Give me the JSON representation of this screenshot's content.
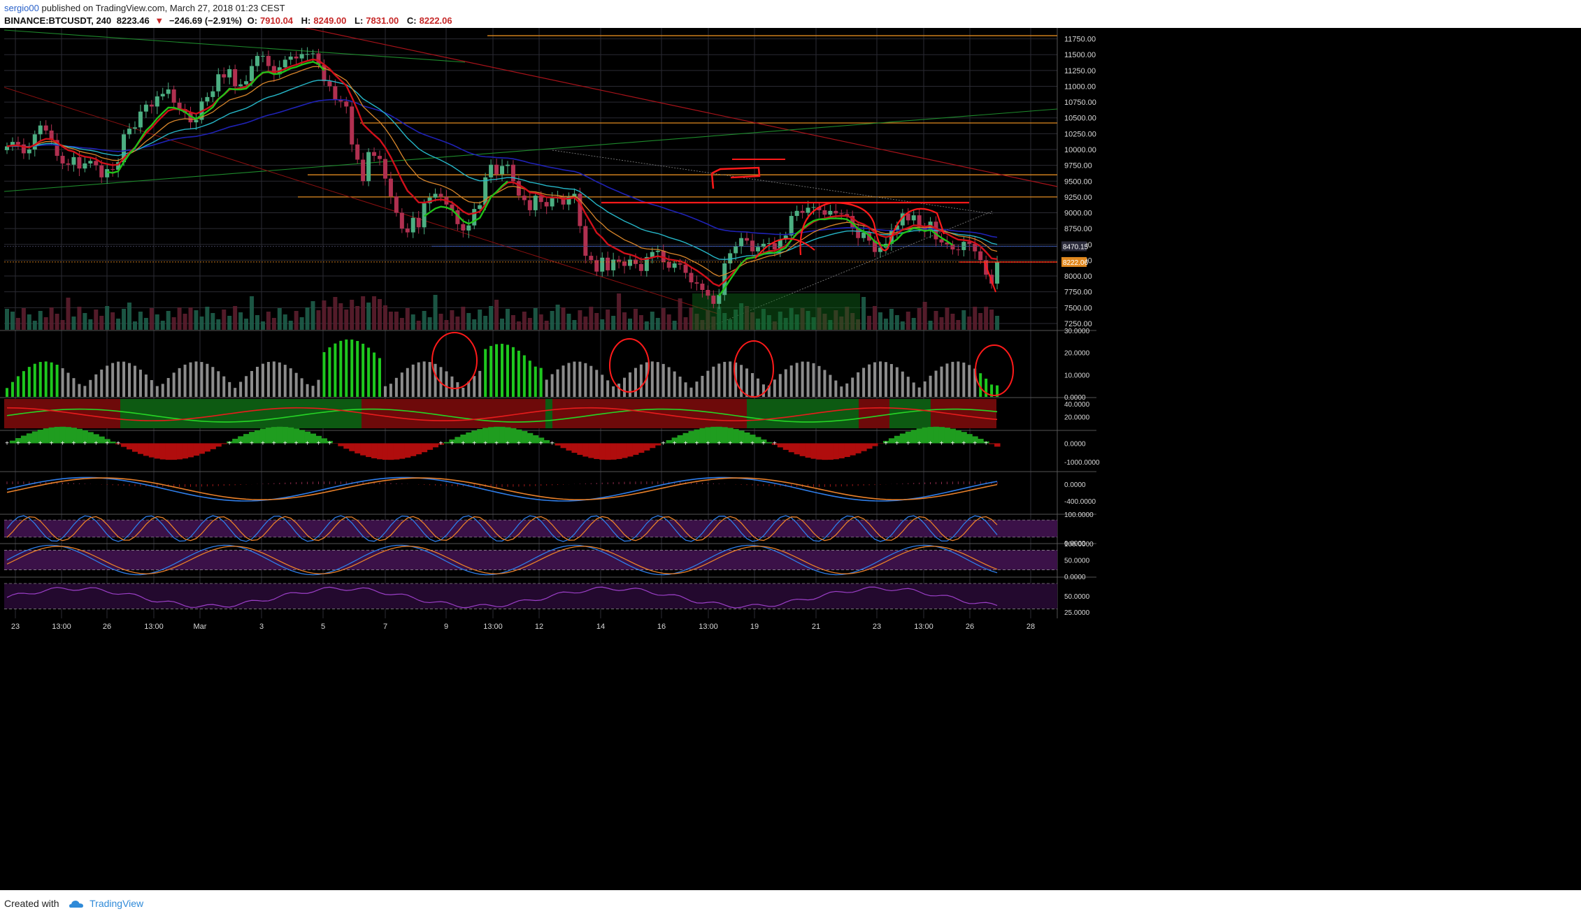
{
  "header": {
    "user": "sergio00",
    "published": "published on TradingView.com, March 27, 2018 01:23 CEST",
    "symbol": "BINANCE:BTCUSDT, 240",
    "last": "8223.46",
    "change_arrow": "▼",
    "change": "−246.69 (−2.91%)",
    "o_label": "O:",
    "o": "7910.04",
    "h_label": "H:",
    "h": "8249.00",
    "l_label": "L:",
    "l": "7831.00",
    "c_label": "C:",
    "c": "8222.06"
  },
  "footer": {
    "created_with": "Created with",
    "brand": "TradingView"
  },
  "colors": {
    "background": "#000000",
    "grid": "#2b2b33",
    "bull": "#4caf82",
    "bear": "#b03050",
    "ema_green": "#22c11a",
    "ema_red": "#d0101a",
    "ema_orange": "#d8862b",
    "ma_cyan": "#26b6c7",
    "ma_blue": "#1f22b5",
    "sr_orange": "#e08a1f",
    "annotation": "#ff1a1a",
    "histogram_green": "#1ec81e",
    "histogram_grey": "#8c8c8c",
    "macd_blue": "#2f7de8",
    "macd_orange": "#e8802a",
    "stoch_purple_zone": "#3b1148"
  },
  "chart_data": {
    "type": "candlestick",
    "timeframe": "240",
    "x_tick_labels": [
      "23",
      "13:00",
      "26",
      "13:00",
      "Mar",
      "3",
      "5",
      "7",
      "9",
      "13:00",
      "12",
      "14",
      "16",
      "13:00",
      "19",
      "21",
      "23",
      "13:00",
      "26",
      "28"
    ],
    "price_axis_labels": [
      "11750.00",
      "11500.00",
      "11250.00",
      "11000.00",
      "10750.00",
      "10500.00",
      "10250.00",
      "10000.00",
      "9750.00",
      "9500.00",
      "9250.00",
      "9000.00",
      "8750.00",
      "8500.00",
      "8250.00",
      "8000.00",
      "7750.00",
      "7500.00",
      "7250.00"
    ],
    "ylim": [
      7150,
      11900
    ],
    "price_markers": [
      {
        "label": "8470.15",
        "value": 8470.15,
        "color": "#2a2a3a"
      },
      {
        "label": "8222.06",
        "value": 8222.06,
        "color": "#e0881f"
      }
    ],
    "candle_closes": [
      10050,
      10120,
      10080,
      9940,
      10000,
      10240,
      10380,
      10300,
      10150,
      9900,
      9780,
      9760,
      9880,
      9700,
      9780,
      9820,
      9750,
      9560,
      9690,
      9680,
      9800,
      10240,
      10330,
      10350,
      10600,
      10710,
      10680,
      10840,
      10880,
      10950,
      10740,
      10640,
      10580,
      10430,
      10470,
      10760,
      10830,
      10920,
      11190,
      11140,
      11270,
      11000,
      11030,
      11080,
      11320,
      11480,
      11480,
      11320,
      11190,
      11300,
      11420,
      11470,
      11440,
      11510,
      11510,
      11520,
      11340,
      11080,
      11000,
      10790,
      10760,
      10680,
      10080,
      9840,
      9500,
      9960,
      9900,
      9850,
      9540,
      9260,
      9000,
      8750,
      8690,
      8920,
      8770,
      9150,
      9240,
      9300,
      9250,
      9130,
      9040,
      8820,
      8720,
      8800,
      9060,
      9120,
      9560,
      9760,
      9610,
      9740,
      9760,
      9500,
      9270,
      9200,
      9040,
      9270,
      9170,
      9100,
      9230,
      9240,
      9130,
      9250,
      9300,
      8790,
      8320,
      8250,
      8070,
      8290,
      8090,
      8260,
      8230,
      8160,
      8260,
      8190,
      8080,
      8300,
      8380,
      8400,
      8220,
      8130,
      8200,
      8180,
      8050,
      7900,
      7880,
      7780,
      7690,
      7560,
      7700,
      8200,
      8360,
      8470,
      8600,
      8560,
      8390,
      8460,
      8510,
      8520,
      8420,
      8580,
      8640,
      8950,
      9030,
      9000,
      9080,
      9090,
      9040,
      8970,
      9030,
      8990,
      8980,
      8950,
      8760,
      8600,
      8690,
      8560,
      8380,
      8450,
      8510,
      8720,
      8800,
      8990,
      8880,
      8960,
      8780,
      8710,
      8860,
      8580,
      8530,
      8500,
      8420,
      8410,
      8540,
      8510,
      8390,
      8250,
      8020,
      7880,
      8222
    ],
    "volume_note": "volume bars at bottom of price pane with moving average",
    "sr_levels": [
      11800,
      10420,
      9600,
      9250,
      8470
    ],
    "series": [
      {
        "name": "EMA fast",
        "color": "#22c11a"
      },
      {
        "name": "EMA mid",
        "color": "#d0101a"
      },
      {
        "name": "EMA slow",
        "color": "#d8862b"
      },
      {
        "name": "MA cyan",
        "color": "#26b6c7"
      },
      {
        "name": "MA blue",
        "color": "#1f22b5"
      }
    ],
    "indicator_panels": [
      {
        "name": "histogram",
        "axis_labels": [
          "30.0000",
          "20.0000",
          "10.0000",
          "0.0000"
        ],
        "ylim": [
          0,
          30
        ]
      },
      {
        "name": "oscillator",
        "axis_labels": [
          "40.0000",
          "20.0000"
        ],
        "ylim": [
          0,
          50
        ]
      },
      {
        "name": "zero-cross histogram",
        "axis_labels": [
          "0.0000",
          "-1000.0000"
        ],
        "ylim": [
          -1500,
          700
        ]
      },
      {
        "name": "MACD",
        "axis_labels": [
          "0.0000",
          "-400.0000"
        ],
        "ylim": [
          -700,
          300
        ]
      },
      {
        "name": "stoch rsi",
        "axis_labels": [
          "100.0000",
          "0.0000"
        ],
        "ylim": [
          0,
          100
        ]
      },
      {
        "name": "stochastic",
        "axis_labels": [
          "100.0000",
          "50.0000",
          "0.0000"
        ],
        "ylim": [
          0,
          100
        ]
      },
      {
        "name": "rsi",
        "axis_labels": [
          "50.0000",
          "25.0000"
        ],
        "ylim": [
          15,
          80
        ]
      }
    ]
  }
}
